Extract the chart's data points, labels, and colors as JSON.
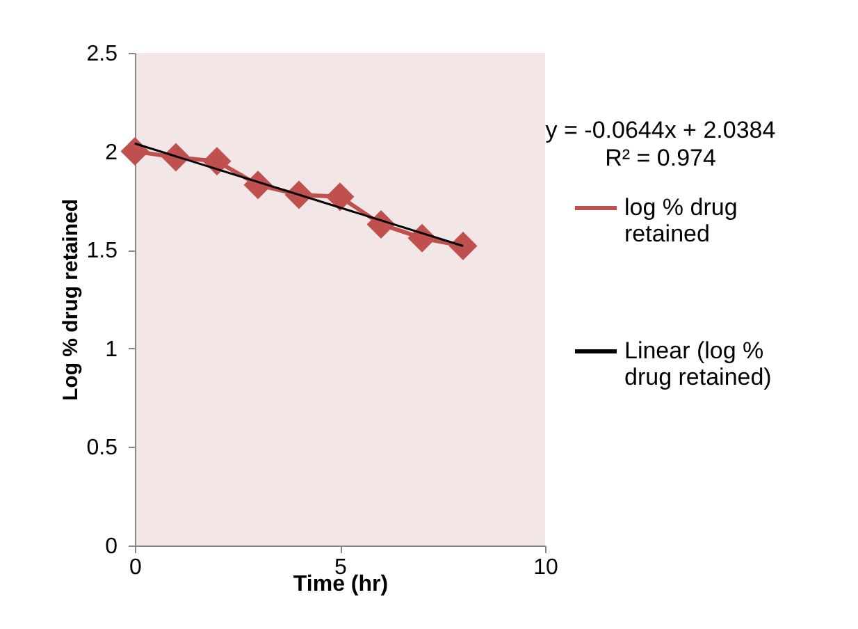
{
  "chart_data": {
    "type": "line",
    "xlabel": "Time (hr)",
    "ylabel": "Log % drug retained",
    "annotations": [
      "y = -0.0644x + 2.0384",
      "R² = 0.974"
    ],
    "series": [
      {
        "name": "log % drug retained",
        "color": "#c0504d",
        "marker": "diamond",
        "x": [
          0,
          1,
          2,
          3,
          4,
          5,
          6,
          7,
          8
        ],
        "values": [
          2.0,
          1.97,
          1.95,
          1.83,
          1.78,
          1.77,
          1.63,
          1.56,
          1.52
        ]
      },
      {
        "name": "Linear (log % drug retained)",
        "color": "#000000",
        "marker": "none",
        "x": [
          0,
          8
        ],
        "values": [
          2.04,
          1.52
        ]
      }
    ],
    "xlim": [
      0,
      10
    ],
    "xticks": [
      0,
      5,
      10
    ],
    "ylim": [
      0,
      2.5
    ],
    "yticks": [
      0,
      0.5,
      1,
      1.5,
      2,
      2.5
    ],
    "legend": "right",
    "grid": false
  }
}
